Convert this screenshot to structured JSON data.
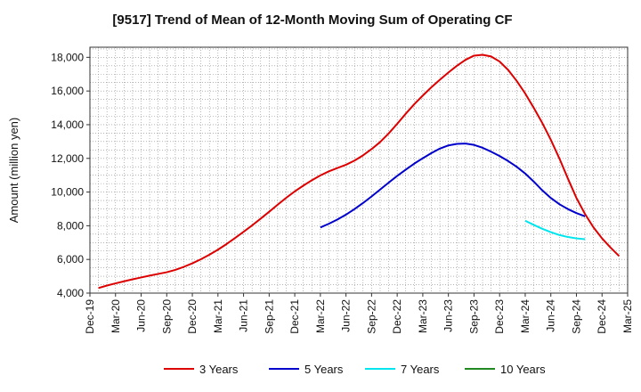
{
  "chart_data": {
    "type": "line",
    "title": "[9517]  Trend of Mean of 12-Month Moving Sum of Operating CF",
    "xlabel": "",
    "ylabel": "Amount (million yen)",
    "ylim": [
      4000,
      18600
    ],
    "yticks": [
      4000,
      6000,
      8000,
      10000,
      12000,
      14000,
      16000,
      18000
    ],
    "ytick_labels": [
      "4,000",
      "6,000",
      "8,000",
      "10,000",
      "12,000",
      "14,000",
      "16,000",
      "18,000"
    ],
    "x_tick_labels": [
      "Dec-19",
      "Mar-20",
      "Jun-20",
      "Sep-20",
      "Dec-20",
      "Mar-21",
      "Jun-21",
      "Sep-21",
      "Dec-21",
      "Mar-22",
      "Jun-22",
      "Sep-22",
      "Dec-22",
      "Mar-23",
      "Jun-23",
      "Sep-23",
      "Dec-23",
      "Mar-24",
      "Jun-24",
      "Sep-24",
      "Dec-24",
      "Mar-25"
    ],
    "x_start": "Dec-19",
    "x_months": 63,
    "grid": true,
    "legend_position": "bottom",
    "series": [
      {
        "name": "3 Years",
        "color": "#dd0000",
        "start_month": 1,
        "values": [
          4300,
          4450,
          4580,
          4700,
          4820,
          4930,
          5040,
          5140,
          5240,
          5380,
          5560,
          5770,
          6010,
          6280,
          6580,
          6910,
          7270,
          7640,
          8020,
          8420,
          8830,
          9250,
          9660,
          10040,
          10380,
          10700,
          10990,
          11230,
          11430,
          11620,
          11870,
          12180,
          12550,
          12970,
          13480,
          14050,
          14650,
          15220,
          15730,
          16220,
          16670,
          17100,
          17500,
          17850,
          18100,
          18150,
          18050,
          17750,
          17250,
          16600,
          15850,
          15000,
          14100,
          13100,
          12000,
          10800,
          9650,
          8700,
          7900,
          7250,
          6700,
          6200
        ]
      },
      {
        "name": "5 Years",
        "color": "#0000cc",
        "start_month": 27,
        "values": [
          7900,
          8120,
          8370,
          8660,
          8990,
          9350,
          9740,
          10150,
          10560,
          10960,
          11330,
          11690,
          12010,
          12310,
          12580,
          12770,
          12860,
          12880,
          12800,
          12630,
          12400,
          12140,
          11840,
          11500,
          11100,
          10620,
          10100,
          9650,
          9280,
          8990,
          8750,
          8560
        ]
      },
      {
        "name": "7 Years",
        "color": "#00e5ee",
        "start_month": 51,
        "values": [
          8300,
          8050,
          7820,
          7620,
          7450,
          7330,
          7250,
          7200
        ]
      },
      {
        "name": "10 Years",
        "color": "#228822",
        "start_month": 0,
        "values": []
      }
    ]
  }
}
